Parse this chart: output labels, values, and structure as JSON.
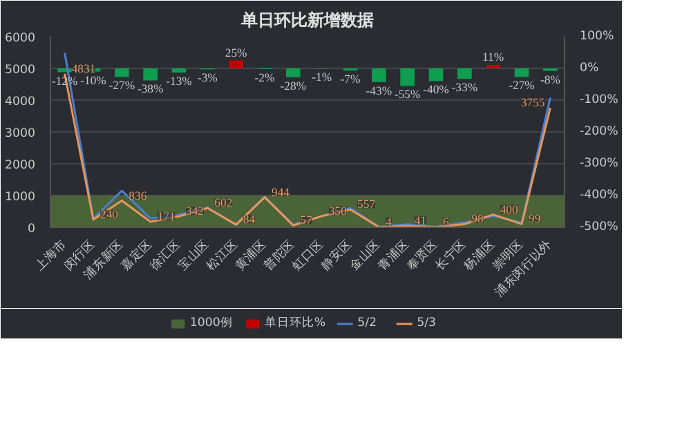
{
  "chart_data": {
    "type": "bar",
    "title": "单日环比新增数据",
    "categories": [
      "上海市",
      "闵行区",
      "浦东新区",
      "嘉定区",
      "徐汇区",
      "宝山区",
      "松江区",
      "黄浦区",
      "普陀区",
      "虹口区",
      "静安区",
      "金山区",
      "青浦区",
      "奉贤区",
      "长宁区",
      "杨浦区",
      "崇明区",
      "浦东闵行以外"
    ],
    "bands": [
      {
        "axis": "y",
        "from": 0,
        "to": 1000,
        "label": "1000例",
        "color": "#56763a"
      }
    ],
    "series": [
      {
        "name": "单日环比%",
        "axis": "y2",
        "colors": [
          "#0f9d4f",
          "#0f9d4f",
          "#0f9d4f",
          "#0f9d4f",
          "#0f9d4f",
          "#0f9d4f",
          "#c00000",
          "#0f9d4f",
          "#0f9d4f",
          "#0f9d4f",
          "#0f9d4f",
          "#0f9d4f",
          "#0f9d4f",
          "#0f9d4f",
          "#0f9d4f",
          "#c00000",
          "#0f9d4f",
          "#0f9d4f"
        ],
        "color": "#c00000",
        "values": [
          -12,
          -10,
          -27,
          -38,
          -13,
          -3,
          25,
          -2,
          -28,
          -1,
          -7,
          -43,
          -55,
          -40,
          -33,
          11,
          -27,
          -8
        ],
        "value_labels": [
          "-12%",
          "-10%",
          "-27%",
          "-38%",
          "-13%",
          "-3%",
          "25%",
          "-2%",
          "-28%",
          "-1%",
          "-7%",
          "-43%",
          "-55%",
          "-40%",
          "-33%",
          "11%",
          "-27%",
          "-8%"
        ]
      },
      {
        "name": "5/2",
        "type": "line",
        "color": "#4a7fd0",
        "values": [
          5490,
          270,
          1150,
          280,
          390,
          620,
          70,
          960,
          80,
          350,
          600,
          10,
          90,
          10,
          150,
          360,
          140,
          4080
        ]
      },
      {
        "name": "5/3",
        "type": "line",
        "color": "#e8965a",
        "values": [
          4831,
          240,
          836,
          171,
          342,
          602,
          84,
          944,
          57,
          350,
          557,
          4,
          41,
          6,
          98,
          400,
          99,
          3755
        ],
        "value_labels": [
          "4831",
          "240",
          "836",
          "171",
          "342",
          "602",
          "84",
          "944",
          "57",
          "350",
          "557",
          "4",
          "41",
          "6",
          "98",
          "400",
          "99",
          "3755"
        ]
      }
    ],
    "ylim": [
      0,
      6000
    ],
    "yticks": [
      0,
      1000,
      2000,
      3000,
      4000,
      5000,
      6000
    ],
    "y2lim": [
      -500,
      100
    ],
    "y2ticks": [
      {
        "value": -500,
        "label": "-500%"
      },
      {
        "value": -400,
        "label": "-400%"
      },
      {
        "value": -300,
        "label": "-300%"
      },
      {
        "value": -200,
        "label": "-200%"
      },
      {
        "value": -100,
        "label": "-100%"
      },
      {
        "value": 0,
        "label": "0%"
      },
      {
        "value": 100,
        "label": "100%"
      }
    ],
    "grid": "y",
    "legend": "bottom"
  }
}
